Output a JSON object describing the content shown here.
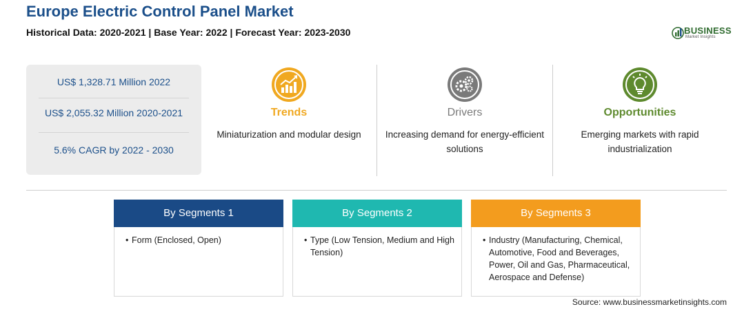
{
  "header": {
    "title": "Europe Electric Control Panel Market",
    "subtitle": "Historical Data: 2020-2021 | Base Year: 2022 | Forecast Year: 2023-2030"
  },
  "logo": {
    "word": "BUSINESS",
    "sub": "Market Insights",
    "icon": "logo-icon"
  },
  "stats": [
    "US$ 1,328.71 Million 2022",
    "US$ 2,055.32 Million 2020-2021",
    "5.6% CAGR by 2022 - 2030"
  ],
  "columns": [
    {
      "title": "Trends",
      "text": "Miniaturization and modular design",
      "icon": "rising-chart-icon",
      "color": "#f0a820"
    },
    {
      "title": "Drivers",
      "text": "Increasing demand for energy-efficient solutions",
      "icon": "gears-icon",
      "color": "#7a7a7a"
    },
    {
      "title": "Opportunities",
      "text": "Emerging markets with rapid industrialization",
      "icon": "lightbulb-icon",
      "color": "#5e8a2e"
    }
  ],
  "segments": [
    {
      "title": "By Segments 1",
      "color": "#1a4a86",
      "items": [
        "Form (Enclosed, Open)"
      ]
    },
    {
      "title": "By Segments 2",
      "color": "#1fb8b0",
      "items": [
        "Type (Low Tension, Medium and High Tension)"
      ]
    },
    {
      "title": "By Segments 3",
      "color": "#f39c1e",
      "items": [
        "Industry (Manufacturing, Chemical, Automotive, Food and Beverages, Power, Oil and Gas, Pharmaceutical, Aerospace and Defense)"
      ]
    }
  ],
  "bullet": "•",
  "source": "Source: www.businessmarketinsights.com"
}
